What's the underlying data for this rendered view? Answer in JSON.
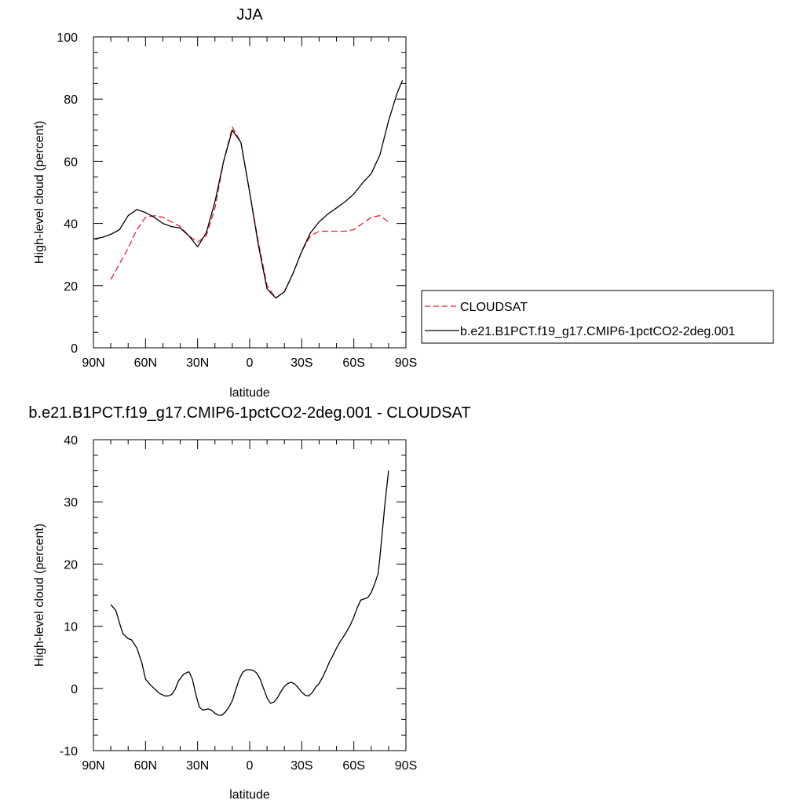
{
  "chart_data": [
    {
      "type": "line",
      "title": "JJA",
      "xlabel": "latitude",
      "ylabel": "High-level cloud (percent)",
      "xlim": [
        90,
        -90
      ],
      "ylim": [
        0,
        100
      ],
      "x_tick_values": [
        90,
        60,
        30,
        0,
        -30,
        -60,
        -90
      ],
      "x_tick_labels": [
        "90N",
        "60N",
        "30N",
        "0",
        "30S",
        "60S",
        "90S"
      ],
      "y_tick_values": [
        0,
        20,
        40,
        60,
        80,
        100
      ],
      "y_tick_labels": [
        "0",
        "20",
        "40",
        "60",
        "80",
        "100"
      ],
      "grid": false,
      "legend_position": "right",
      "series": [
        {
          "name": "CLOUDSAT",
          "color": "#e8202a",
          "dash": "dashed",
          "x": [
            80,
            75,
            70,
            65,
            60,
            55,
            50,
            45,
            40,
            35,
            30,
            25,
            20,
            15,
            10,
            5,
            0,
            -5,
            -10,
            -15,
            -20,
            -25,
            -30,
            -35,
            -40,
            -45,
            -50,
            -55,
            -60,
            -65,
            -70,
            -75,
            -80
          ],
          "y": [
            22,
            27,
            32,
            38,
            42,
            42.5,
            42,
            40.5,
            39,
            36,
            34,
            36,
            45,
            60,
            71,
            66,
            50,
            34,
            20,
            16,
            18,
            24,
            31,
            36,
            37.5,
            37.5,
            37.5,
            37.5,
            38,
            40,
            42,
            42.5,
            40.5
          ]
        },
        {
          "name": "b.e21.B1PCT.f19_g17.CMIP6-1pctCO2-2deg.001",
          "color": "#000000",
          "dash": "solid",
          "x": [
            90,
            85,
            80,
            75,
            70,
            65,
            60,
            55,
            50,
            45,
            40,
            35,
            30,
            25,
            20,
            15,
            10,
            5,
            0,
            -5,
            -10,
            -15,
            -20,
            -25,
            -30,
            -35,
            -40,
            -45,
            -50,
            -55,
            -60,
            -65,
            -70,
            -75,
            -80,
            -85,
            -88
          ],
          "y": [
            35,
            35.5,
            36.5,
            38,
            42.5,
            44.5,
            43.5,
            42,
            40,
            39,
            38.5,
            36,
            32.5,
            37,
            47,
            60,
            70,
            66,
            50,
            33,
            19,
            16,
            18,
            24,
            31,
            37,
            40.5,
            43,
            45,
            47,
            49.5,
            53,
            56,
            62,
            73,
            82,
            86
          ]
        }
      ]
    },
    {
      "type": "line",
      "title": "b.e21.B1PCT.f19_g17.CMIP6-1pctCO2-2deg.001 - CLOUDSAT",
      "xlabel": "latitude",
      "ylabel": "High-level cloud (percent)",
      "xlim": [
        90,
        -90
      ],
      "ylim": [
        -10,
        40
      ],
      "x_tick_values": [
        90,
        60,
        30,
        0,
        -30,
        -60,
        -90
      ],
      "x_tick_labels": [
        "90N",
        "60N",
        "30N",
        "0",
        "30S",
        "60S",
        "90S"
      ],
      "y_tick_values": [
        -10,
        0,
        10,
        20,
        30,
        40
      ],
      "y_tick_labels": [
        "-10",
        "0",
        "10",
        "20",
        "30",
        "40"
      ],
      "grid": false,
      "series": [
        {
          "color": "#000000",
          "dash": "solid",
          "x": [
            80,
            77,
            75,
            73,
            70,
            68,
            65,
            62,
            60,
            57,
            55,
            52,
            49,
            47,
            45,
            43,
            41,
            38,
            35,
            33,
            31,
            29,
            27,
            24,
            22,
            20,
            18,
            16,
            14,
            12,
            10,
            8,
            6,
            4,
            2,
            0,
            -2,
            -4,
            -6,
            -8,
            -10,
            -12,
            -14,
            -16,
            -18,
            -20,
            -22,
            -24,
            -26,
            -28,
            -30,
            -32,
            -34,
            -36,
            -38,
            -40,
            -42,
            -44,
            -46,
            -48,
            -50,
            -52,
            -54,
            -56,
            -58,
            -60,
            -62,
            -64,
            -66,
            -68,
            -70,
            -72,
            -74,
            -75,
            -76,
            -77,
            -78,
            -79,
            -80
          ],
          "y": [
            13.5,
            12.5,
            10.5,
            8.8,
            8,
            7.8,
            6.5,
            4,
            1.5,
            0.5,
            0,
            -0.8,
            -1.2,
            -1.2,
            -1,
            -0.2,
            1.2,
            2.3,
            2.7,
            1.5,
            -1,
            -3,
            -3.5,
            -3.3,
            -3.5,
            -4,
            -4.3,
            -4.3,
            -3.8,
            -3,
            -2,
            -0.2,
            1.5,
            2.6,
            3,
            3,
            2.9,
            2.5,
            1.5,
            0,
            -1.5,
            -2.4,
            -2.2,
            -1.5,
            -0.5,
            0.3,
            0.8,
            1,
            0.7,
            0.1,
            -0.6,
            -1.1,
            -1.2,
            -0.7,
            0.2,
            0.8,
            1.8,
            3,
            4.3,
            5.3,
            6.5,
            7.5,
            8.3,
            9.2,
            10.2,
            11.5,
            13,
            14.2,
            14.4,
            14.6,
            15.4,
            16.8,
            18.5,
            21,
            24,
            27,
            30,
            32.5,
            35
          ]
        }
      ]
    }
  ]
}
